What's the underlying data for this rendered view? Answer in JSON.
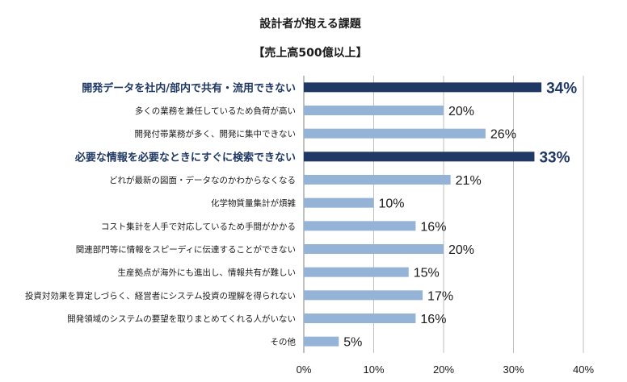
{
  "chart_data": {
    "type": "bar",
    "orientation": "horizontal",
    "title": "設計者が抱える課題",
    "subtitle": "【売上高500億以上】",
    "categories": [
      "開発データを社内/部内で共有・流用できない",
      "多くの業務を兼任しているため負荷が高い",
      "開発付帯業務が多く、開発に集中できない",
      "必要な情報を必要なときにすぐに検索できない",
      "どれが最新の図面・データなのかわからなくなる",
      "化学物質量集計が煩雑",
      "コスト集計を人手で対応しているため手間がかかる",
      "関連部門等に情報をスピーディに伝達することができない",
      "生産拠点が海外にも進出し、情報共有が難しい",
      "投資対効果を算定しづらく、経営者にシステム投資の理解を得られない",
      "開発領域のシステムの要望を取りまとめてくれる人がいない",
      "その他"
    ],
    "values": [
      34,
      20,
      26,
      33,
      21,
      10,
      16,
      20,
      15,
      17,
      16,
      5
    ],
    "value_labels": [
      "34%",
      "20%",
      "26%",
      "33%",
      "21%",
      "10%",
      "16%",
      "20%",
      "15%",
      "17%",
      "16%",
      "5%"
    ],
    "highlighted": [
      true,
      false,
      false,
      true,
      false,
      false,
      false,
      false,
      false,
      false,
      false,
      false
    ],
    "xlim": [
      0,
      40
    ],
    "xticks": [
      0,
      10,
      20,
      30,
      40
    ],
    "xtick_labels": [
      "0%",
      "10%",
      "20%",
      "30%",
      "40%"
    ],
    "grid": true,
    "colors": {
      "normal": "#95b3d7",
      "highlight": "#1f3864",
      "highlight_text": "#1f3864",
      "grid": "#bfbfbf"
    }
  }
}
